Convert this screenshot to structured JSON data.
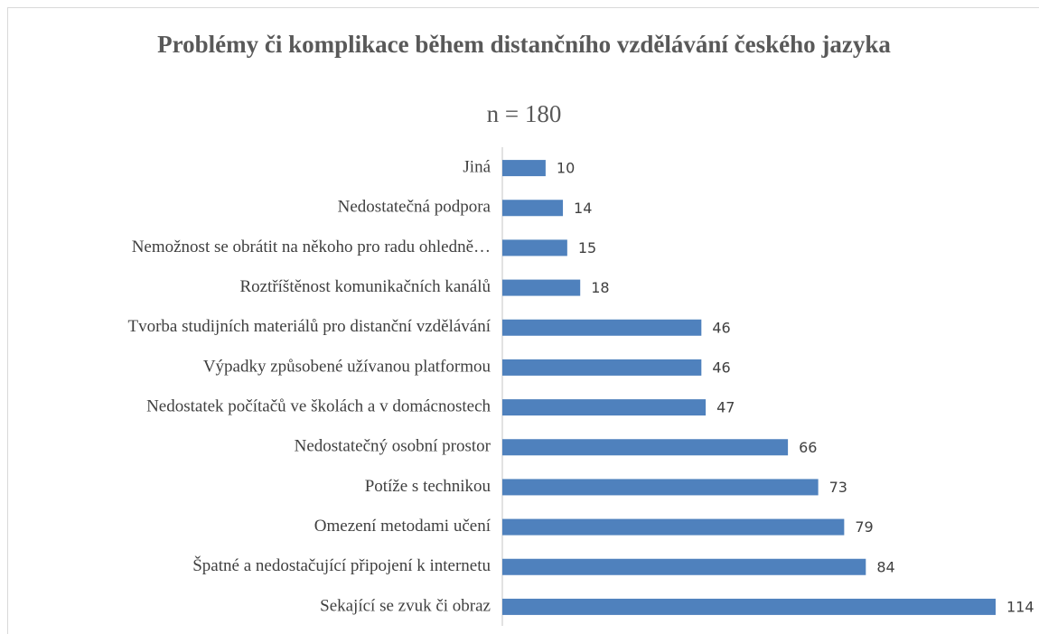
{
  "chart_data": {
    "type": "barh",
    "title": "Problémy či komplikace během distančního vzdělávání českého jazyka",
    "subtitle": "n = 180",
    "categories": [
      "Jiná",
      "Nedostatečná podpora",
      "Nemožnost se obrátit na někoho pro radu ohledně…",
      "Roztříštěnost komunikačních kanálů",
      "Tvorba studijních materiálů pro distanční vzdělávání",
      "Výpadky způsobené užívanou platformou",
      "Nedostatek počítačů ve školách a v domácnostech",
      "Nedostatečný osobní prostor",
      "Potíže s technikou",
      "Omezení metodami učení",
      "Špatné a nedostačující připojení k internetu",
      "Sekající se zvuk či obraz"
    ],
    "values": [
      10,
      14,
      15,
      18,
      46,
      46,
      47,
      66,
      73,
      79,
      84,
      114
    ],
    "color": "#4f81bd"
  }
}
